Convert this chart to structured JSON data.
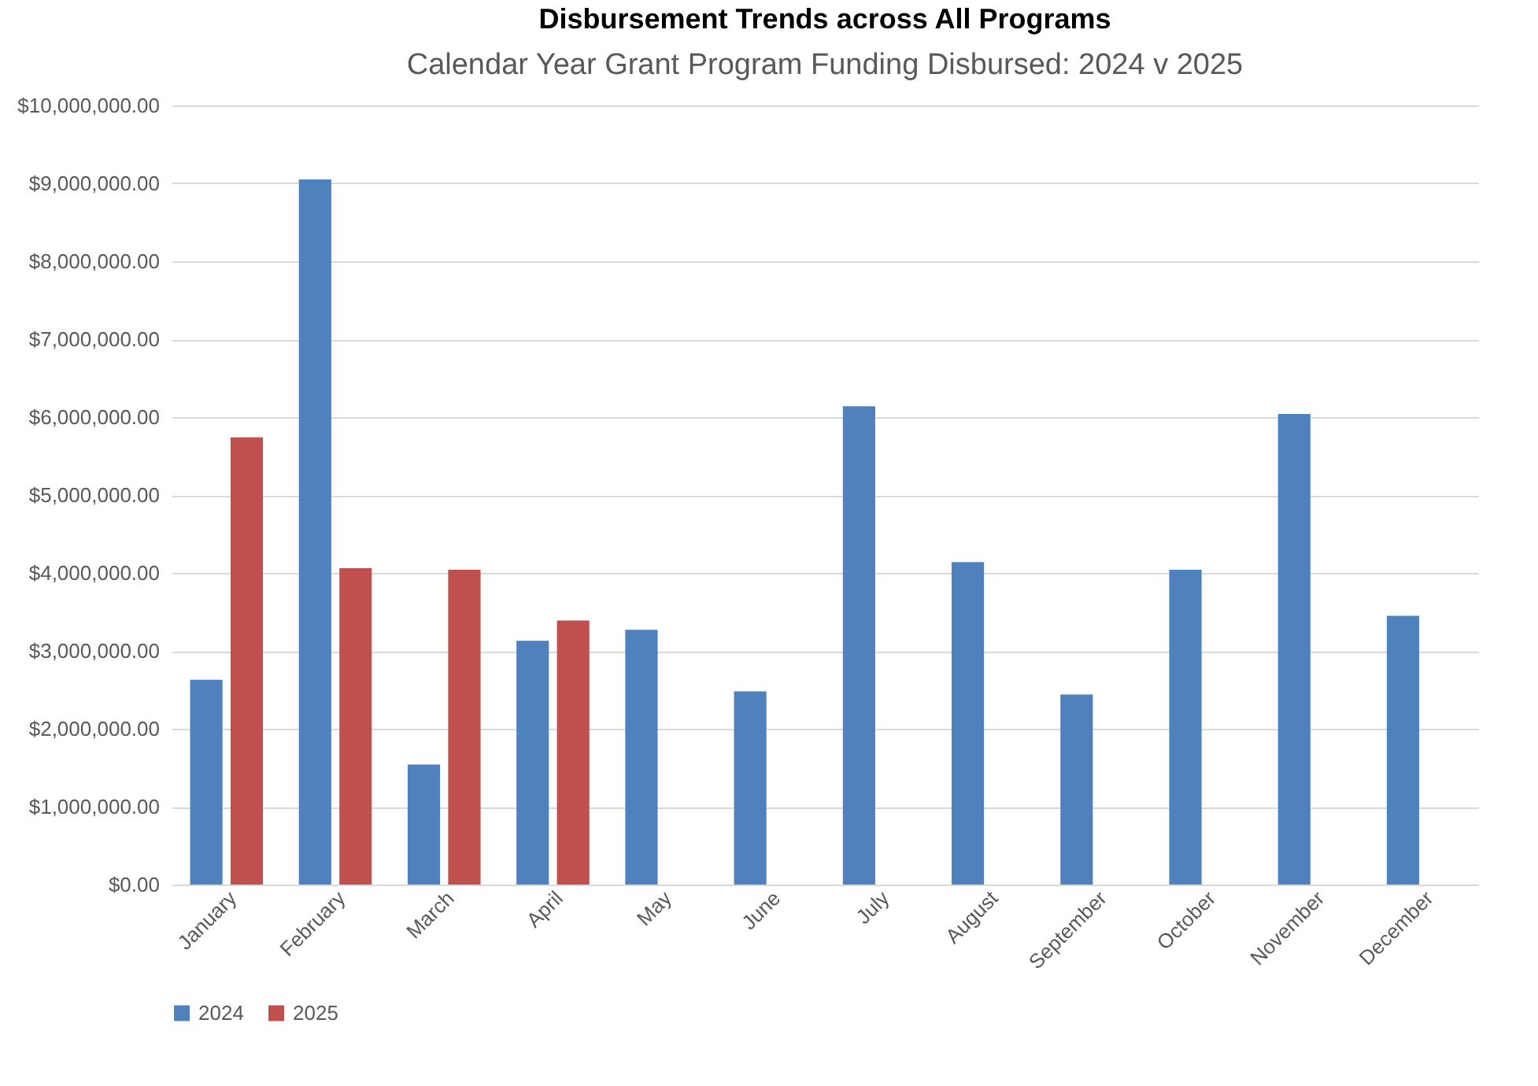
{
  "chart_data": {
    "type": "bar",
    "title": "Disbursement Trends across All Programs",
    "subtitle": "Calendar Year Grant Program Funding Disbursed: 2024 v 2025",
    "categories": [
      "January",
      "February",
      "March",
      "April",
      "May",
      "June",
      "July",
      "August",
      "September",
      "October",
      "November",
      "December"
    ],
    "series": [
      {
        "name": "2024",
        "color": "#4f81bd",
        "values": [
          2630000,
          9050000,
          1540000,
          3130000,
          3270000,
          2480000,
          6140000,
          4140000,
          2440000,
          4040000,
          6040000,
          3450000
        ]
      },
      {
        "name": "2025",
        "color": "#c0504d",
        "values": [
          5740000,
          4060000,
          4040000,
          3390000,
          null,
          null,
          null,
          null,
          null,
          null,
          null,
          null
        ]
      }
    ],
    "ylim": [
      0,
      10000000
    ],
    "yticks": [
      {
        "value": 0,
        "label": "$0.00"
      },
      {
        "value": 1000000,
        "label": "$1,000,000.00"
      },
      {
        "value": 2000000,
        "label": "$2,000,000.00"
      },
      {
        "value": 3000000,
        "label": "$3,000,000.00"
      },
      {
        "value": 4000000,
        "label": "$4,000,000.00"
      },
      {
        "value": 5000000,
        "label": "$5,000,000.00"
      },
      {
        "value": 6000000,
        "label": "$6,000,000.00"
      },
      {
        "value": 7000000,
        "label": "$7,000,000.00"
      },
      {
        "value": 8000000,
        "label": "$8,000,000.00"
      },
      {
        "value": 9000000,
        "label": "$9,000,000.00"
      },
      {
        "value": 10000000,
        "label": "$10,000,000.00"
      }
    ],
    "grid": "y",
    "legend": "bottom"
  }
}
